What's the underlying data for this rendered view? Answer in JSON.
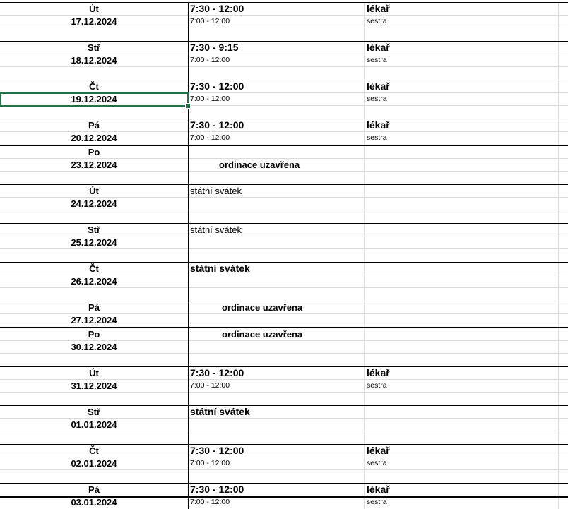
{
  "sheet": {
    "selected_cell": {
      "block": 2,
      "row": 1
    },
    "blocks": [
      {
        "day": "Út",
        "date": "17.12.2024",
        "rows": 3,
        "type": "open",
        "doctor_hours": "7:30 - 12:00",
        "nurse_hours": "7:00 - 12:00",
        "doctor": "lékař",
        "nurse": "sestra"
      },
      {
        "day": "Stř",
        "date": "18.12.2024",
        "rows": 3,
        "type": "open",
        "doctor_hours": "7:30 - 9:15",
        "nurse_hours": "7:00 - 12:00",
        "doctor": "lékař",
        "nurse": "sestra"
      },
      {
        "day": "Čt",
        "date": "19.12.2024",
        "rows": 3,
        "type": "open",
        "doctor_hours": "7:30 - 12:00",
        "nurse_hours": "7:00 - 12:00",
        "doctor": "lékař",
        "nurse": "sestra"
      },
      {
        "day": "Pá",
        "date": "20.12.2024",
        "rows": 2,
        "type": "open",
        "doctor_hours": "7:30 - 12:00",
        "nurse_hours": "7:00 - 12:00",
        "doctor": "lékař",
        "nurse": "sestra"
      },
      {
        "day": "Po",
        "date": "23.12.2024",
        "rows": 3,
        "thick": true,
        "type": "note",
        "note": "ordinace uzavřena",
        "note_row": 1,
        "note_style": "bold13 ind1"
      },
      {
        "day": "Út",
        "date": "24.12.2024",
        "rows": 3,
        "type": "note",
        "note": "státní svátek",
        "note_row": 0,
        "note_style": "norm"
      },
      {
        "day": "Stř",
        "date": "25.12.2024",
        "rows": 3,
        "type": "note",
        "note": "státní svátek",
        "note_row": 0,
        "note_style": "norm"
      },
      {
        "day": "Čt",
        "date": "26.12.2024",
        "rows": 3,
        "type": "note",
        "note": "státní svátek",
        "note_row": 0,
        "note_style": "big"
      },
      {
        "day": "Pá",
        "date": "27.12.2024",
        "rows": 2,
        "type": "note",
        "note": "ordinace uzavřena",
        "note_row": 0,
        "note_style": "bold13 ind2"
      },
      {
        "day": "Po",
        "date": "30.12.2024",
        "rows": 3,
        "thick": true,
        "type": "note",
        "note": "ordinace uzavřena",
        "note_row": 0,
        "note_style": "bold13 ind2"
      },
      {
        "day": "Út",
        "date": "31.12.2024",
        "rows": 3,
        "type": "open",
        "doctor_hours": "7:30 - 12:00",
        "nurse_hours": "7:00 - 12:00",
        "doctor": "lékař",
        "nurse": "sestra"
      },
      {
        "day": "Stř",
        "date": "01.01.2024",
        "rows": 3,
        "type": "note",
        "note": "státní svátek",
        "note_row": 0,
        "note_style": "big"
      },
      {
        "day": "Čt",
        "date": "02.01.2024",
        "rows": 3,
        "type": "open",
        "doctor_hours": "7:30 - 12:00",
        "nurse_hours": "7:00 - 12:00",
        "doctor": "lékař",
        "nurse": "sestra"
      },
      {
        "day": "Pá",
        "date": "03.01.2024",
        "rows": 2,
        "type": "open",
        "doctor_hours": "7:30 - 12:00",
        "nurse_hours": "7:00 - 12:00",
        "doctor": "lékař",
        "nurse": "sestra"
      }
    ]
  }
}
